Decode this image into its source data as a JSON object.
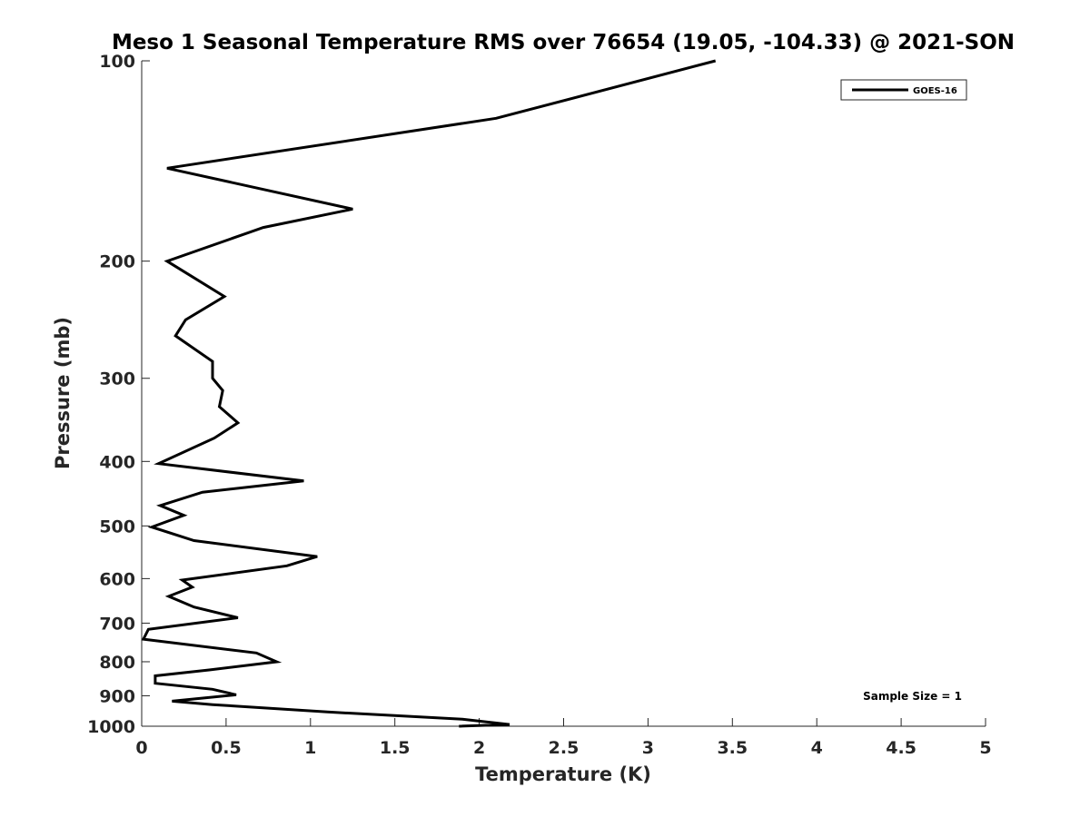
{
  "chart_data": {
    "type": "line",
    "title": "Meso 1 Seasonal Temperature RMS over 76654 (19.05, -104.33) @ 2021-SON",
    "xlabel": "Temperature (K)",
    "ylabel": "Pressure (mb)",
    "xlim": [
      0,
      5
    ],
    "ylim": [
      100,
      1000
    ],
    "y_scale": "log",
    "y_reversed": true,
    "grid": false,
    "x_ticks": [
      0,
      0.5,
      1,
      1.5,
      2,
      2.5,
      3,
      3.5,
      4,
      4.5,
      5
    ],
    "x_tick_labels": [
      "0",
      "0.5",
      "1",
      "1.5",
      "2",
      "2.5",
      "3",
      "3.5",
      "4",
      "4.5",
      "5"
    ],
    "y_ticks": [
      100,
      200,
      300,
      400,
      500,
      600,
      700,
      800,
      900,
      1000
    ],
    "y_tick_labels": [
      "100",
      "200",
      "300",
      "400",
      "500",
      "600",
      "700",
      "800",
      "900",
      "1000"
    ],
    "legend_position": "top-right",
    "series": [
      {
        "name": "GOES-16",
        "color": "#000000",
        "x": [
          3.4,
          2.1,
          0.15,
          1.25,
          0.72,
          0.15,
          0.49,
          0.26,
          0.2,
          0.42,
          0.42,
          0.48,
          0.46,
          0.57,
          0.43,
          0.1,
          0.96,
          0.36,
          0.11,
          0.25,
          0.06,
          0.31,
          1.04,
          0.86,
          0.24,
          0.3,
          0.16,
          0.31,
          0.57,
          0.04,
          0.01,
          0.68,
          0.8,
          0.4,
          0.08,
          0.08,
          0.42,
          0.56,
          0.18,
          0.42,
          1.1,
          1.9,
          2.18,
          1.88
        ],
        "y": [
          100,
          122,
          145,
          167,
          178,
          200,
          226,
          245,
          259,
          283,
          300,
          313,
          331,
          350,
          369,
          403,
          428,
          445,
          466,
          482,
          502,
          526,
          556,
          574,
          603,
          618,
          638,
          662,
          687,
          715,
          740,
          776,
          800,
          823,
          840,
          862,
          880,
          897,
          917,
          928,
          952,
          976,
          994,
          1015
        ]
      }
    ],
    "annotations": [
      {
        "text": "Sample Size = 1",
        "position": "bottom-right"
      }
    ]
  }
}
